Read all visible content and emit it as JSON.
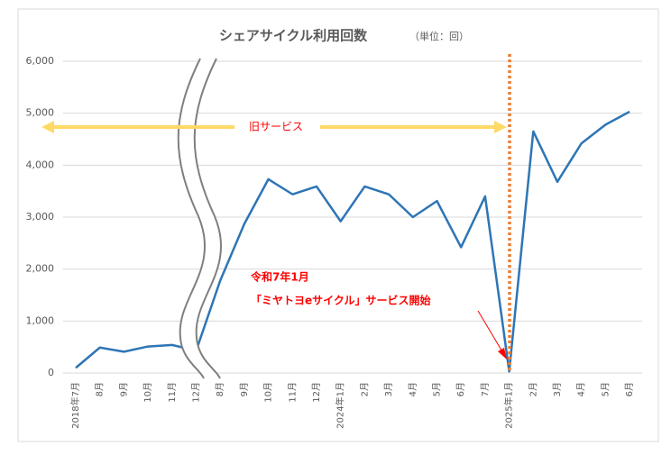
{
  "chart_data": {
    "type": "line",
    "title": "シェアサイクル利用回数",
    "subtitle": "（単位：回）",
    "categories": [
      "2018年7月",
      "8月",
      "9月",
      "10月",
      "11月",
      "12月",
      "8月",
      "9月",
      "10月",
      "11月",
      "12月",
      "2024年1月",
      "2月",
      "3月",
      "4月",
      "5月",
      "6月",
      "7月",
      "2025年1月",
      "2月",
      "3月",
      "4月",
      "5月",
      "6月"
    ],
    "series": [
      {
        "name": "利用回数",
        "color": "#2e75b6",
        "values": [
          100,
          490,
          410,
          510,
          540,
          430,
          1780,
          2870,
          3730,
          3440,
          3590,
          2920,
          3590,
          3440,
          3000,
          3310,
          2420,
          3400,
          30,
          4650,
          3680,
          4420,
          4780,
          5030
        ]
      }
    ],
    "ylim": [
      0,
      6000
    ],
    "yticks": [
      0,
      {
        "value": 1000,
        "label": "1,000"
      },
      {
        "value": 2000,
        "label": "2,000"
      },
      {
        "value": 3000,
        "label": "3,000"
      },
      {
        "value": 4000,
        "label": "4,000"
      },
      {
        "value": 5000,
        "label": "5,000"
      },
      {
        "value": 6000,
        "label": "6,000"
      }
    ],
    "annotations": [
      "旧サービス",
      "令和7年1月",
      "「ミヤトヨeサイクル」サービス開始"
    ]
  }
}
